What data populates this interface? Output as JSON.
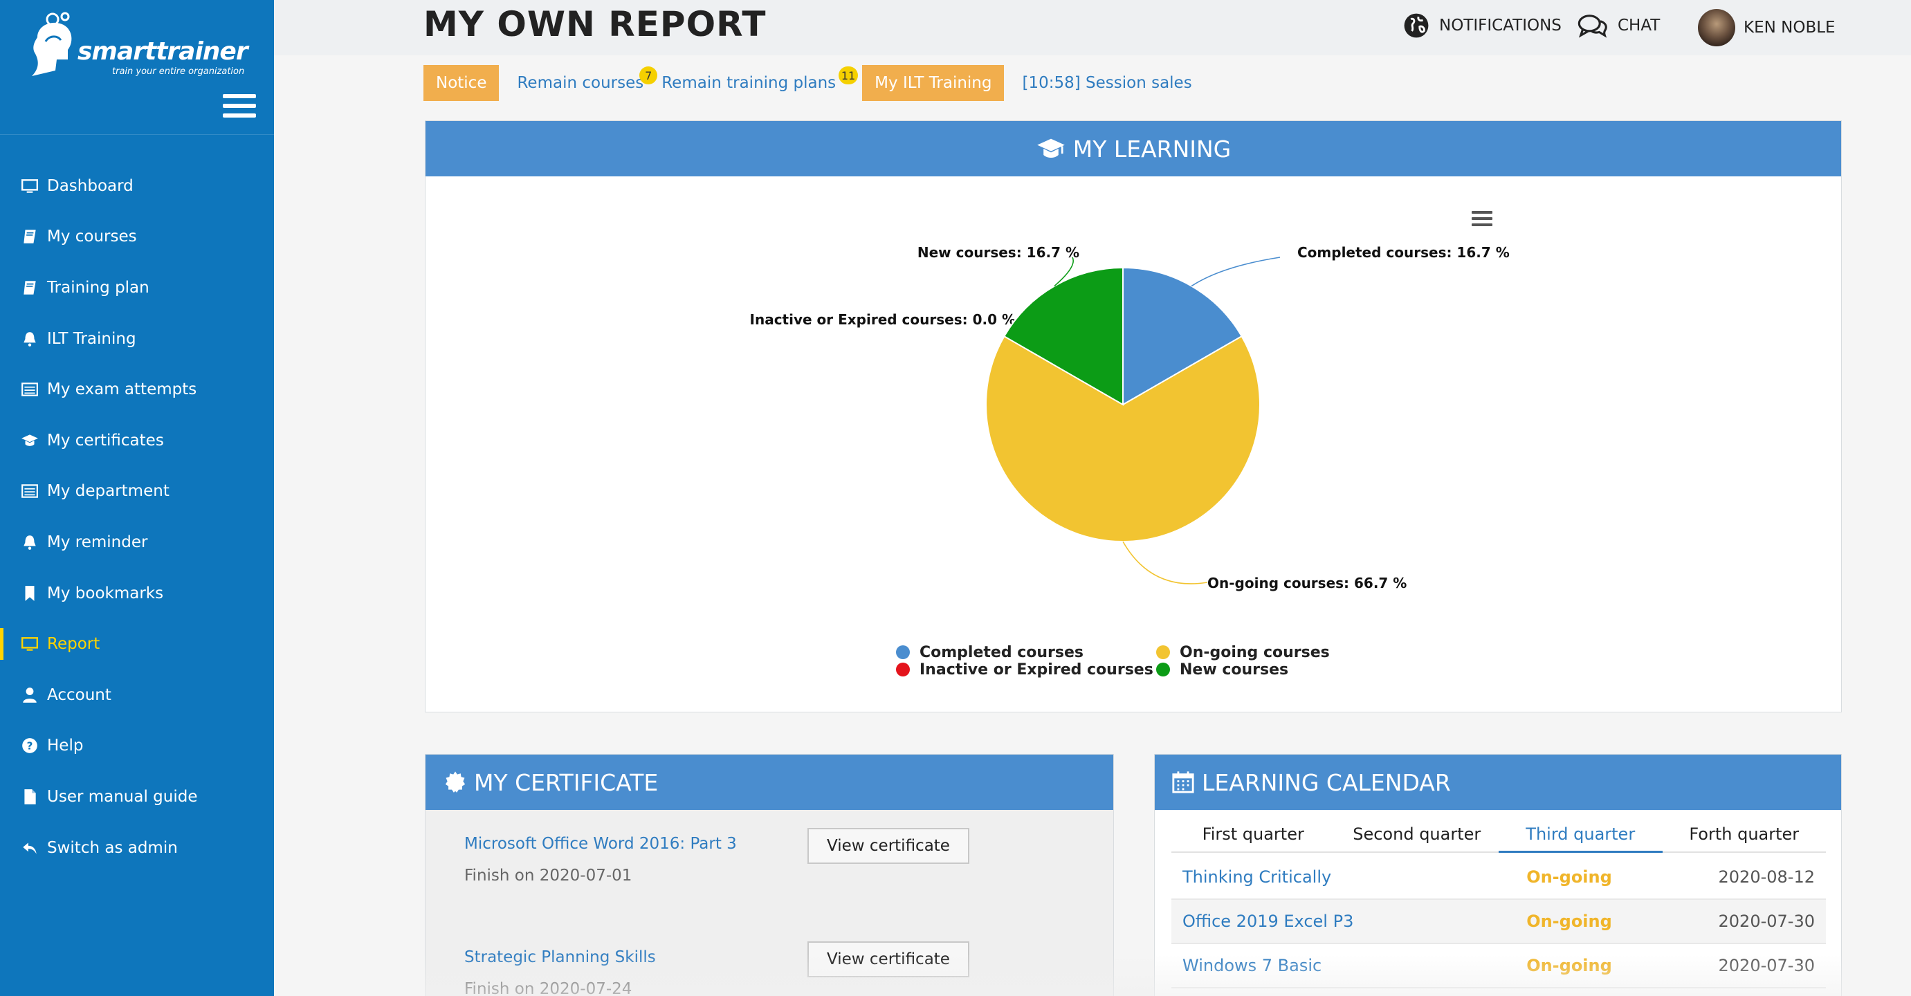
{
  "brand": {
    "name": "smarttrainer",
    "tagline": "train your entire organization"
  },
  "sidebar": {
    "items": [
      {
        "label": "Dashboard",
        "icon": "monitor-icon"
      },
      {
        "label": "My courses",
        "icon": "book-icon"
      },
      {
        "label": "Training plan",
        "icon": "book-icon"
      },
      {
        "label": "ILT Training",
        "icon": "bell-icon"
      },
      {
        "label": "My exam attempts",
        "icon": "list-icon"
      },
      {
        "label": "My certificates",
        "icon": "graduation-cap-icon"
      },
      {
        "label": "My department",
        "icon": "list-icon"
      },
      {
        "label": "My reminder",
        "icon": "bell-icon"
      },
      {
        "label": "My bookmarks",
        "icon": "bookmark-icon"
      },
      {
        "label": "Report",
        "icon": "monitor-icon",
        "active": true
      },
      {
        "label": "Account",
        "icon": "user-icon"
      },
      {
        "label": "Help",
        "icon": "question-circle-icon"
      },
      {
        "label": "User manual guide",
        "icon": "file-icon"
      },
      {
        "label": "Switch as admin",
        "icon": "reply-icon"
      }
    ]
  },
  "header": {
    "title": "MY OWN REPORT",
    "notifications_label": "NOTIFICATIONS",
    "chat_label": "CHAT",
    "user_name": "KEN NOBLE"
  },
  "tabs": {
    "notice": "Notice",
    "remain_courses": "Remain courses",
    "remain_courses_count": "7",
    "remain_plans": "Remain training plans",
    "remain_plans_count": "11",
    "ilt": "My ILT Training",
    "session": "[10:58] Session sales"
  },
  "learning": {
    "title": "MY LEARNING"
  },
  "chart_data": {
    "type": "pie",
    "title": "",
    "slices": [
      {
        "name": "Completed courses",
        "value": 16.7,
        "color": "#4a8dcf",
        "label": "Completed courses: 16.7 %"
      },
      {
        "name": "On-going courses",
        "value": 66.7,
        "color": "#f2c431",
        "label": "On-going courses: 66.7 %"
      },
      {
        "name": "Inactive or Expired courses",
        "value": 0.0,
        "color": "#e4141c",
        "label": "Inactive or Expired courses: 0.0 %"
      },
      {
        "name": "New courses",
        "value": 16.7,
        "color": "#0c9c16",
        "label": "New courses: 16.7 %"
      }
    ],
    "legend": {
      "placement": "bottom",
      "order": [
        "Completed courses",
        "On-going courses",
        "Inactive or Expired courses",
        "New courses"
      ]
    }
  },
  "certificate": {
    "title": "MY CERTIFICATE",
    "button_label": "View certificate",
    "items": [
      {
        "name": "Microsoft Office Word 2016: Part 3",
        "finish": "Finish on 2020-07-01"
      },
      {
        "name": "Strategic Planning Skills",
        "finish": "Finish on 2020-07-24"
      }
    ]
  },
  "calendar": {
    "title": "LEARNING CALENDAR",
    "quarters": [
      "First quarter",
      "Second quarter",
      "Third quarter",
      "Forth quarter"
    ],
    "active_quarter": "Third quarter",
    "rows": [
      {
        "name": "Thinking Critically",
        "status": "On-going",
        "date": "2020-08-12"
      },
      {
        "name": "Office 2019 Excel P3",
        "status": "On-going",
        "date": "2020-07-30"
      },
      {
        "name": "Windows 7 Basic",
        "status": "On-going",
        "date": "2020-07-30"
      }
    ]
  }
}
